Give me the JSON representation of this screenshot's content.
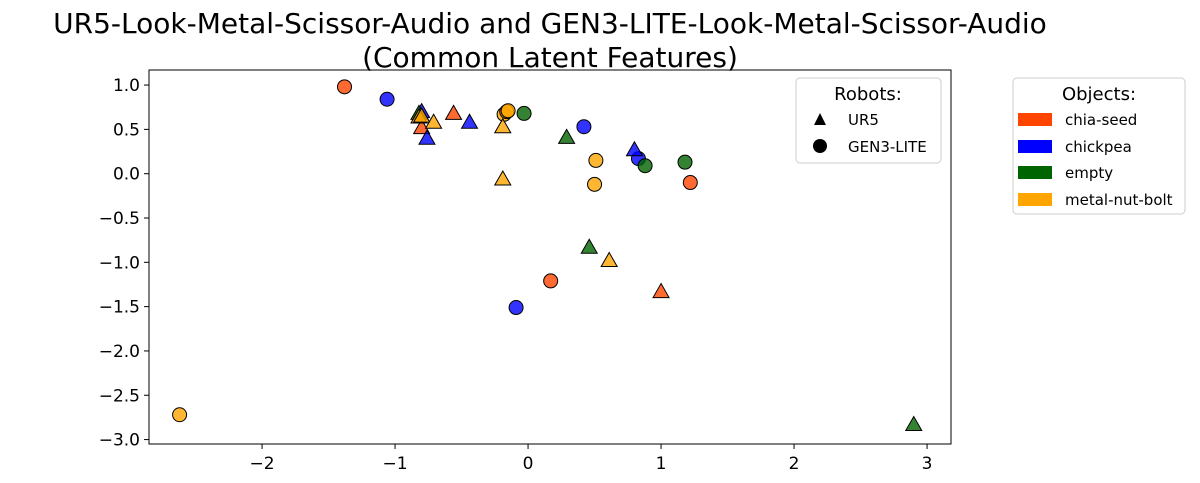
{
  "chart_data": {
    "type": "scatter",
    "title_line1": "UR5-Look-Metal-Scissor-Audio and GEN3-LITE-Look-Metal-Scissor-Audio",
    "title_line2": "(Common Latent Features)",
    "xlabel": "",
    "ylabel": "",
    "xlim": [
      -2.85,
      3.18
    ],
    "ylim": [
      -3.05,
      1.17
    ],
    "xticks": [
      -2,
      -1,
      0,
      1,
      2,
      3
    ],
    "xtick_labels": [
      "−2",
      "−1",
      "0",
      "1",
      "2",
      "3"
    ],
    "yticks": [
      1.0,
      0.5,
      0.0,
      -0.5,
      -1.0,
      -1.5,
      -2.0,
      -2.5,
      -3.0
    ],
    "ytick_labels": [
      "1.0",
      "0.5",
      "0.0",
      "−0.5",
      "−1.0",
      "−1.5",
      "−2.0",
      "−2.5",
      "−3.0"
    ],
    "grid": false,
    "robots_legend": {
      "title": "Robots:",
      "entries": [
        {
          "label": "UR5",
          "marker": "triangle"
        },
        {
          "label": "GEN3-LITE",
          "marker": "circle"
        }
      ],
      "placement": "top-right"
    },
    "objects_legend": {
      "title": "Objects:",
      "entries": [
        {
          "label": "chia-seed",
          "color": "#ff4500"
        },
        {
          "label": "chickpea",
          "color": "#0000ff"
        },
        {
          "label": "empty",
          "color": "#006400"
        },
        {
          "label": "metal-nut-bolt",
          "color": "#ffa500"
        }
      ],
      "placement": "outside-right"
    },
    "series": [
      {
        "object": "chia-seed",
        "robot": "GEN3-LITE",
        "points": [
          [
            -1.38,
            0.98
          ],
          [
            1.22,
            -0.1
          ],
          [
            0.17,
            -1.21
          ]
        ]
      },
      {
        "object": "chia-seed",
        "robot": "UR5",
        "points": [
          [
            -0.8,
            0.52
          ],
          [
            -0.56,
            0.68
          ],
          [
            1.0,
            -1.33
          ]
        ]
      },
      {
        "object": "chickpea",
        "robot": "GEN3-LITE",
        "points": [
          [
            -1.06,
            0.84
          ],
          [
            0.42,
            0.53
          ],
          [
            0.83,
            0.17
          ],
          [
            -0.09,
            -1.51
          ]
        ]
      },
      {
        "object": "chickpea",
        "robot": "UR5",
        "points": [
          [
            -0.8,
            0.7
          ],
          [
            -0.76,
            0.4
          ],
          [
            -0.44,
            0.58
          ],
          [
            0.8,
            0.27
          ]
        ]
      },
      {
        "object": "empty",
        "robot": "GEN3-LITE",
        "points": [
          [
            -0.03,
            0.68
          ],
          [
            0.88,
            0.09
          ],
          [
            1.18,
            0.13
          ]
        ]
      },
      {
        "object": "empty",
        "robot": "UR5",
        "points": [
          [
            -0.82,
            0.68
          ],
          [
            0.29,
            0.41
          ],
          [
            0.46,
            -0.83
          ],
          [
            2.9,
            -2.83
          ]
        ]
      },
      {
        "object": "metal-nut-bolt",
        "robot": "GEN3-LITE",
        "points": [
          [
            -0.18,
            0.67
          ],
          [
            -0.16,
            0.7
          ],
          [
            -0.15,
            0.71
          ],
          [
            0.51,
            0.15
          ],
          [
            0.5,
            -0.12
          ],
          [
            -2.62,
            -2.72
          ]
        ]
      },
      {
        "object": "metal-nut-bolt",
        "robot": "UR5",
        "points": [
          [
            -0.82,
            0.64
          ],
          [
            -0.8,
            0.65
          ],
          [
            -0.71,
            0.58
          ],
          [
            -0.19,
            0.53
          ],
          [
            -0.19,
            -0.06
          ],
          [
            0.61,
            -0.98
          ]
        ]
      }
    ]
  },
  "colors": {
    "chia-seed": "#ff4500",
    "chickpea": "#0000ff",
    "empty": "#006400",
    "metal-nut-bolt": "#ffa500"
  }
}
